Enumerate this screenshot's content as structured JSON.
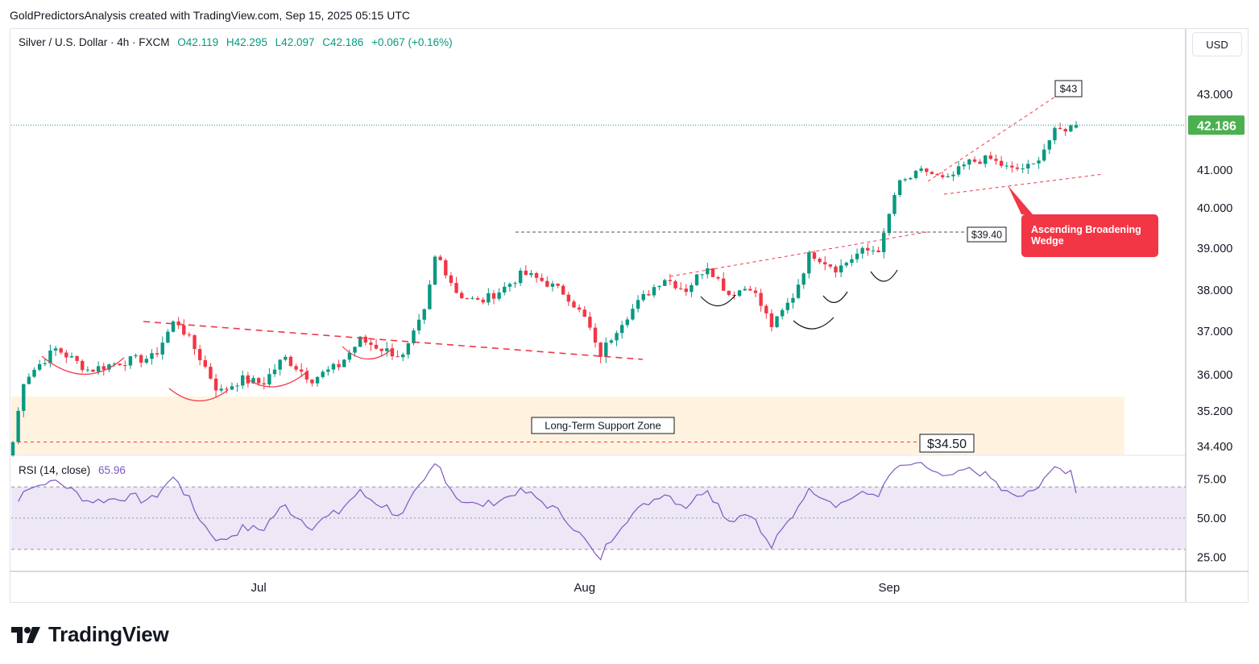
{
  "header": {
    "credit": "GoldPredictorsAnalysis created with TradingView.com, Sep 15, 2025 05:15 UTC"
  },
  "symbol": {
    "name": "Silver / U.S. Dollar · 4h · FXCM",
    "open": "O42.119",
    "high": "H42.295",
    "low": "L42.097",
    "close": "C42.186",
    "change": "+0.067 (+0.16%)"
  },
  "currency_label": "USD",
  "last_price_label": "42.186",
  "rsi": {
    "label": "RSI (14, close)",
    "value": "65.96"
  },
  "brand": {
    "name": "TradingView"
  },
  "annotations": {
    "target_label": "$43",
    "breakout_label": "$39.40",
    "support_zone_label": "Long-Term Support Zone",
    "support_level_label": "$34.50",
    "pattern_label_line1": "Ascending Broadening",
    "pattern_label_line2": "Wedge"
  },
  "colors": {
    "up": "#089981",
    "down": "#f23645",
    "rsi_line": "#7e57c2",
    "rsi_band": "#ede7f6",
    "support_zone": "#fff3e0",
    "callout": "#f23645",
    "last_price_bg": "#4caf50"
  },
  "chart_data": {
    "type": "candlestick",
    "timeframe": "4h",
    "instrument": "Silver / U.S. Dollar",
    "y_axis": {
      "tick_labels": [
        "43.000",
        "41.000",
        "40.000",
        "39.000",
        "38.000",
        "37.000",
        "36.000",
        "35.200",
        "34.400"
      ],
      "tick_values": [
        43.0,
        41.0,
        40.0,
        39.0,
        38.0,
        37.0,
        36.0,
        35.2,
        34.4
      ]
    },
    "x_axis": {
      "tick_labels": [
        "Jul",
        "Aug",
        "Sep"
      ],
      "tick_index": [
        46,
        107,
        164
      ]
    },
    "close_path": [
      [
        0,
        34.5
      ],
      [
        2,
        35.9
      ],
      [
        8,
        36.6
      ],
      [
        14,
        36.1
      ],
      [
        20,
        36.3
      ],
      [
        26,
        36.4
      ],
      [
        30,
        37.3
      ],
      [
        34,
        36.5
      ],
      [
        38,
        35.6
      ],
      [
        42,
        35.9
      ],
      [
        46,
        35.8
      ],
      [
        50,
        36.4
      ],
      [
        55,
        35.9
      ],
      [
        60,
        36.2
      ],
      [
        64,
        36.8
      ],
      [
        68,
        36.6
      ],
      [
        72,
        36.4
      ],
      [
        76,
        37.5
      ],
      [
        78,
        38.9
      ],
      [
        82,
        37.9
      ],
      [
        86,
        37.7
      ],
      [
        90,
        38.0
      ],
      [
        94,
        38.4
      ],
      [
        98,
        38.2
      ],
      [
        102,
        37.9
      ],
      [
        106,
        37.2
      ],
      [
        108,
        36.4
      ],
      [
        112,
        37.2
      ],
      [
        116,
        37.8
      ],
      [
        120,
        38.3
      ],
      [
        124,
        38.0
      ],
      [
        128,
        38.6
      ],
      [
        132,
        37.9
      ],
      [
        136,
        38.1
      ],
      [
        140,
        37.1
      ],
      [
        144,
        37.9
      ],
      [
        147,
        38.9
      ],
      [
        152,
        38.5
      ],
      [
        156,
        38.9
      ],
      [
        160,
        39.0
      ],
      [
        163,
        40.6
      ],
      [
        168,
        41.0
      ],
      [
        172,
        40.7
      ],
      [
        176,
        41.2
      ],
      [
        180,
        41.3
      ],
      [
        184,
        41.0
      ],
      [
        188,
        41.1
      ],
      [
        192,
        42.0
      ],
      [
        196,
        42.186
      ]
    ],
    "rsi": {
      "upper": 70,
      "lower": 30,
      "mid": 50,
      "tick_values": [
        75,
        50,
        25
      ],
      "tick_labels": [
        "75.00",
        "50.00",
        "25.00"
      ],
      "last": 65.96
    },
    "levels": {
      "target": 43.0,
      "breakout": 39.4,
      "support": 34.5,
      "support_zone": [
        34.4,
        35.5
      ],
      "last_close": 42.186
    }
  }
}
